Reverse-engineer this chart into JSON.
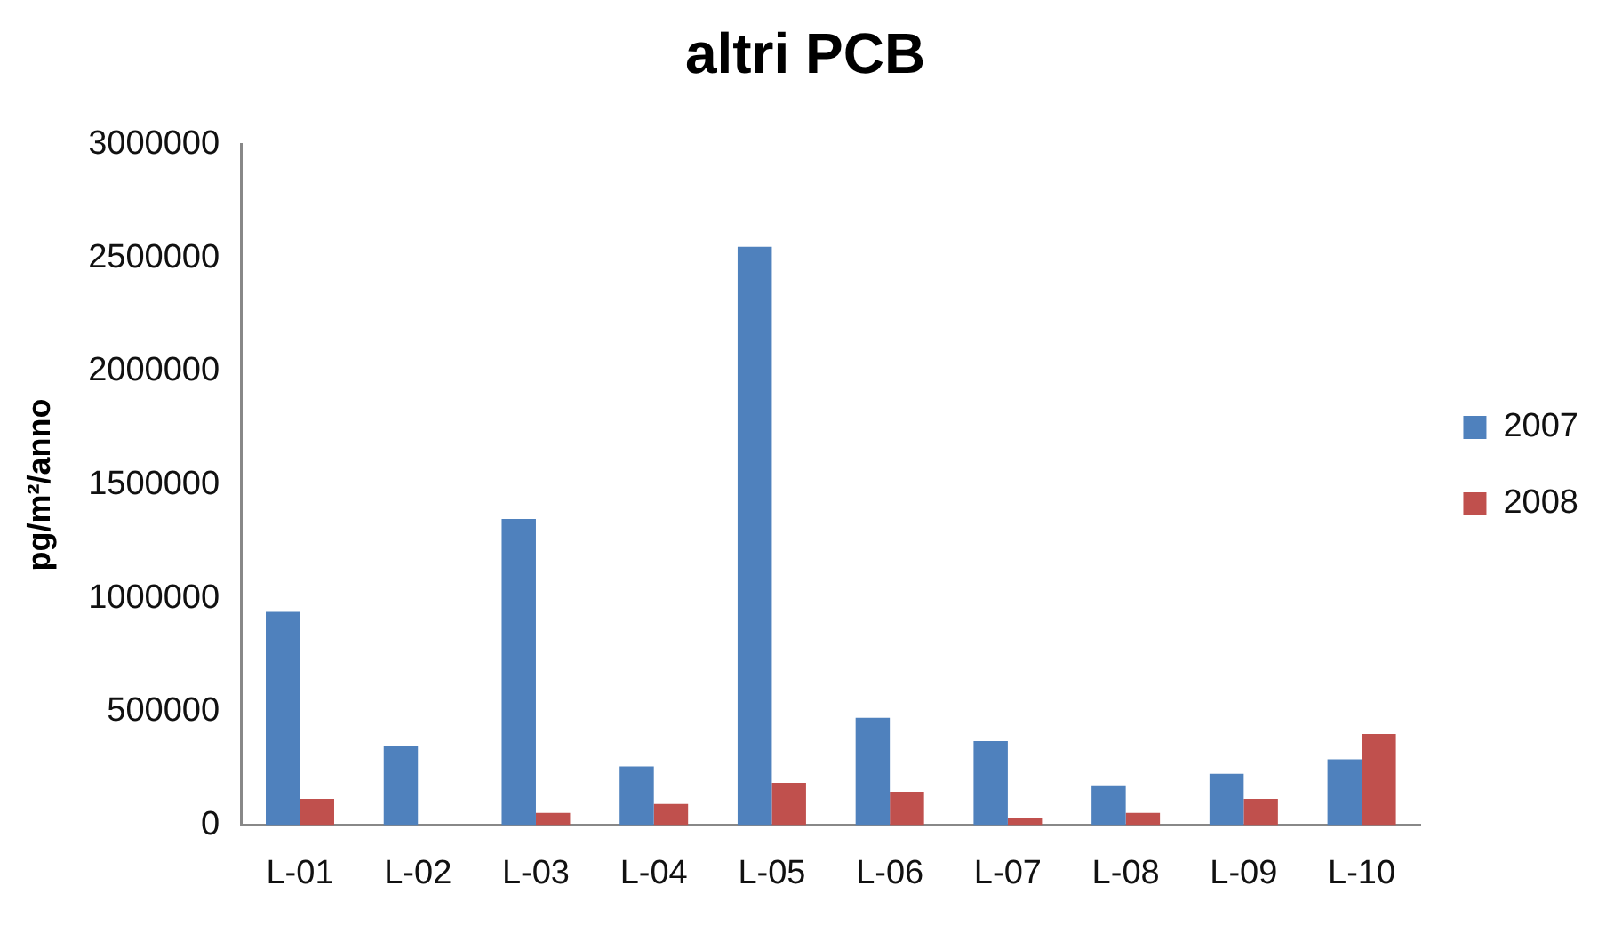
{
  "chart_data": {
    "type": "bar",
    "title": "altri PCB",
    "ylabel": "pg/m²/anno",
    "categories": [
      "L-01",
      "L-02",
      "L-03",
      "L-04",
      "L-05",
      "L-06",
      "L-07",
      "L-08",
      "L-09",
      "L-10"
    ],
    "series": [
      {
        "name": "2007",
        "color": "#4f81bd",
        "values": [
          940000,
          348000,
          1350000,
          258000,
          2550000,
          473000,
          370000,
          175000,
          226000,
          290000
        ]
      },
      {
        "name": "2008",
        "color": "#c0504d",
        "values": [
          115000,
          0,
          53000,
          93000,
          186000,
          147000,
          32000,
          53000,
          115000,
          401000
        ]
      }
    ],
    "ylim": [
      0,
      3000000
    ],
    "yticks": [
      0,
      500000,
      1000000,
      1500000,
      2000000,
      2500000,
      3000000
    ],
    "grid": false,
    "legend": "right"
  }
}
